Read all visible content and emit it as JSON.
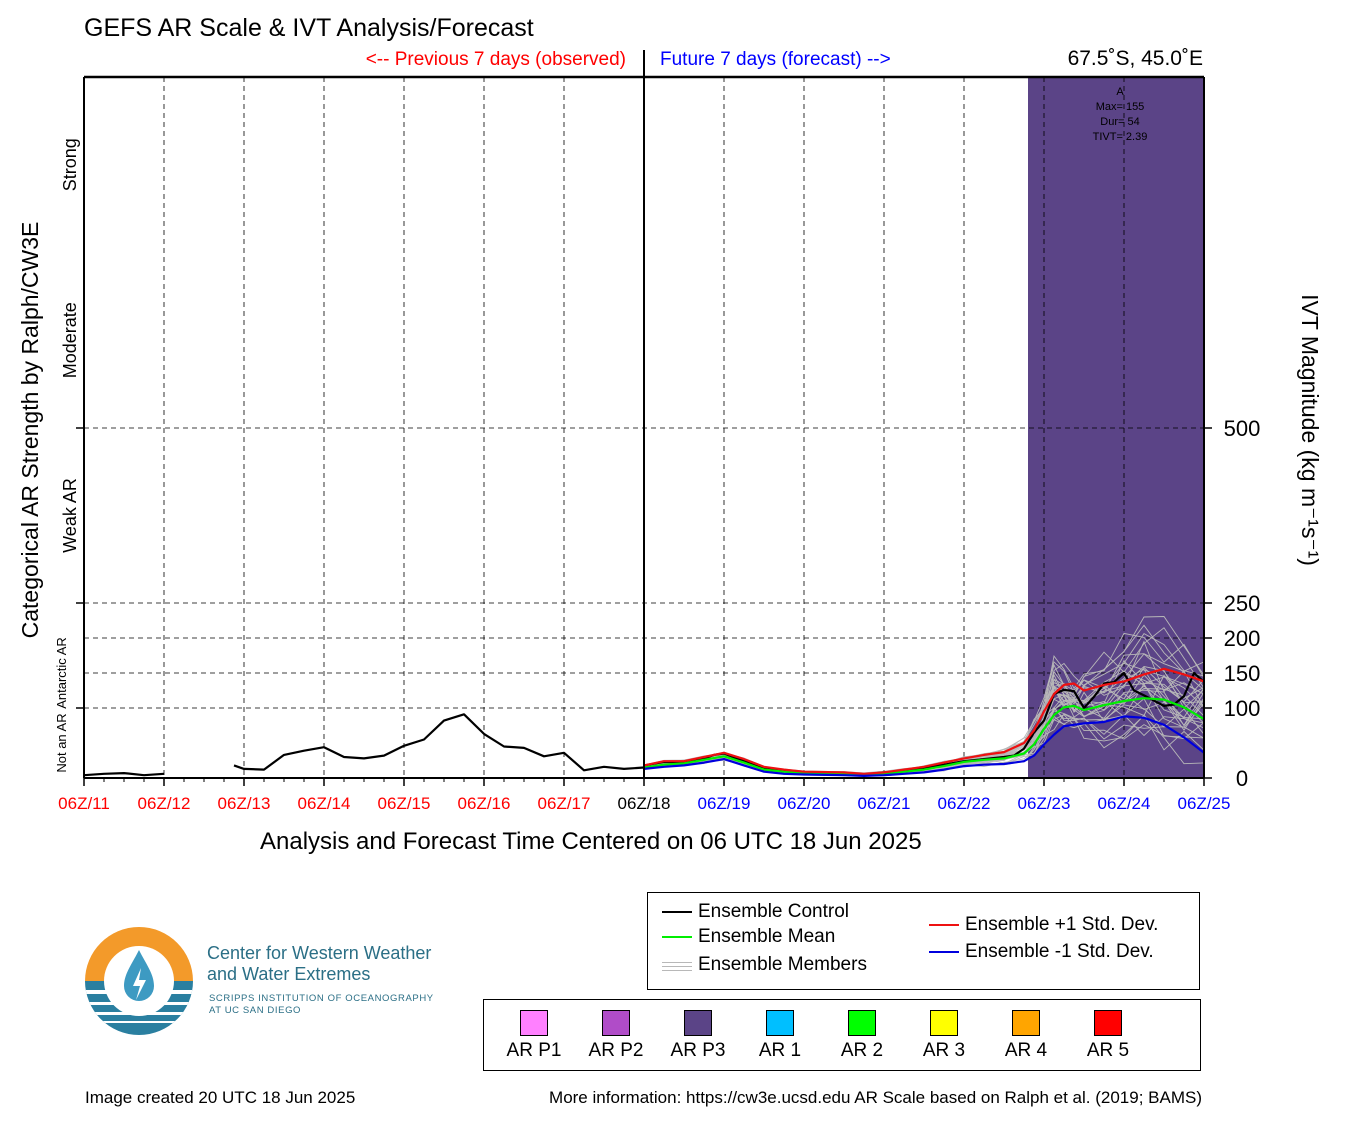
{
  "header": {
    "title": "GEFS AR Scale & IVT Analysis/Forecast",
    "previous_label": "<-- Previous 7 days (observed)",
    "future_label": "Future 7 days (forecast) -->",
    "location": "67.5˚S, 45.0˚E"
  },
  "colors": {
    "observed": "#ff0000",
    "forecast": "#0000ff",
    "control": "#000000",
    "mean": "#00ee00",
    "plus_std": "#ee1111",
    "minus_std": "#0000dd",
    "members": "#b8b8b8",
    "ar_p3": "#5b4487"
  },
  "chart_data": {
    "type": "line",
    "xlabel": "Analysis and Forecast Time Centered on 06 UTC 18 Jun 2025",
    "ylabel_right": "IVT Magnitude (kg m⁻¹s⁻¹)",
    "ylabel_left": "Categorical AR Strength by Ralph/CW3E",
    "xlim": [
      0,
      14
    ],
    "ylim": [
      0,
      1000
    ],
    "x_ticks": [
      {
        "x": 0,
        "label": "06Z/11",
        "color": "#ff0000"
      },
      {
        "x": 1,
        "label": "06Z/12",
        "color": "#ff0000"
      },
      {
        "x": 2,
        "label": "06Z/13",
        "color": "#ff0000"
      },
      {
        "x": 3,
        "label": "06Z/14",
        "color": "#ff0000"
      },
      {
        "x": 4,
        "label": "06Z/15",
        "color": "#ff0000"
      },
      {
        "x": 5,
        "label": "06Z/16",
        "color": "#ff0000"
      },
      {
        "x": 6,
        "label": "06Z/17",
        "color": "#ff0000"
      },
      {
        "x": 7,
        "label": "06Z/18",
        "color": "#000000"
      },
      {
        "x": 8,
        "label": "06Z/19",
        "color": "#0000ff"
      },
      {
        "x": 9,
        "label": "06Z/20",
        "color": "#0000ff"
      },
      {
        "x": 10,
        "label": "06Z/21",
        "color": "#0000ff"
      },
      {
        "x": 11,
        "label": "06Z/22",
        "color": "#0000ff"
      },
      {
        "x": 12,
        "label": "06Z/23",
        "color": "#0000ff"
      },
      {
        "x": 13,
        "label": "06Z/24",
        "color": "#0000ff"
      },
      {
        "x": 14,
        "label": "06Z/25",
        "color": "#0000ff"
      }
    ],
    "y_ticks": [
      {
        "y": 0,
        "label": "0"
      },
      {
        "y": 100,
        "label": "100"
      },
      {
        "y": 150,
        "label": "150"
      },
      {
        "y": 200,
        "label": "200"
      },
      {
        "y": 250,
        "label": "250"
      },
      {
        "y": 500,
        "label": "500"
      }
    ],
    "categories": [
      {
        "label": "Not an AR",
        "y_center": 50
      },
      {
        "label": "Antarctic AR",
        "y_center": 150
      },
      {
        "label": "Weak AR",
        "y_center": 375
      },
      {
        "label": "Moderate",
        "y_center": 625
      },
      {
        "label": "Strong",
        "y_center": 875
      }
    ],
    "grid": true,
    "analysis_split_x": 7,
    "ar_event": {
      "category": "AR P3",
      "x_start": 11.8,
      "x_end": 14,
      "annotation": [
        "A",
        "Max= 155",
        "Dur= 54",
        "TIVT= 2.39"
      ]
    },
    "series": [
      {
        "name": "Ensemble Control",
        "color": "#000000",
        "segments": [
          [
            [
              0,
              4
            ],
            [
              0.25,
              6
            ],
            [
              0.5,
              7
            ],
            [
              0.75,
              4
            ],
            [
              1,
              6
            ]
          ],
          [
            [
              1.875,
              18
            ],
            [
              2,
              13
            ],
            [
              2.25,
              12
            ],
            [
              2.5,
              33
            ],
            [
              2.75,
              39
            ],
            [
              3,
              44
            ],
            [
              3.25,
              30
            ],
            [
              3.5,
              28
            ],
            [
              3.75,
              32
            ],
            [
              4,
              46
            ],
            [
              4.25,
              55
            ],
            [
              4.5,
              82
            ],
            [
              4.75,
              91
            ],
            [
              5,
              63
            ],
            [
              5.25,
              45
            ],
            [
              5.5,
              43
            ],
            [
              5.75,
              31
            ],
            [
              6,
              36
            ],
            [
              6.25,
              11
            ],
            [
              6.5,
              16
            ],
            [
              6.75,
              13
            ],
            [
              7,
              15
            ]
          ]
        ]
      },
      {
        "name": "Ensemble Control",
        "color": "#000000",
        "segments": [
          [
            [
              7,
              18
            ],
            [
              7.25,
              23
            ],
            [
              7.5,
              22
            ],
            [
              7.75,
              28
            ],
            [
              7.875,
              33
            ],
            [
              8,
              35
            ],
            [
              8.25,
              24
            ],
            [
              8.5,
              13
            ],
            [
              8.75,
              10
            ],
            [
              9,
              8
            ],
            [
              9.5,
              7
            ],
            [
              9.75,
              5
            ],
            [
              10,
              8
            ],
            [
              10.25,
              10
            ],
            [
              10.5,
              14
            ],
            [
              10.75,
              19
            ],
            [
              11,
              24
            ],
            [
              11.25,
              27
            ],
            [
              11.5,
              30
            ],
            [
              11.625,
              32
            ],
            [
              11.75,
              42
            ],
            [
              11.875,
              65
            ],
            [
              12,
              82
            ],
            [
              12.125,
              120
            ],
            [
              12.25,
              126
            ],
            [
              12.375,
              124
            ],
            [
              12.5,
              100
            ],
            [
              12.625,
              116
            ],
            [
              12.75,
              135
            ],
            [
              12.875,
              137
            ],
            [
              13,
              150
            ],
            [
              13.125,
              125
            ],
            [
              13.25,
              118
            ],
            [
              13.5,
              103
            ],
            [
              13.625,
              105
            ],
            [
              13.75,
              117
            ],
            [
              13.875,
              150
            ],
            [
              14,
              137
            ]
          ]
        ]
      },
      {
        "name": "Ensemble Mean",
        "color": "#00ee00",
        "segments": [
          [
            [
              7,
              15
            ],
            [
              7.25,
              19
            ],
            [
              7.5,
              21
            ],
            [
              7.75,
              26
            ],
            [
              8,
              31
            ],
            [
              8.25,
              22
            ],
            [
              8.5,
              12
            ],
            [
              8.75,
              9
            ],
            [
              9,
              7
            ],
            [
              9.5,
              6
            ],
            [
              9.75,
              5
            ],
            [
              10,
              6
            ],
            [
              10.25,
              9
            ],
            [
              10.5,
              12
            ],
            [
              10.75,
              17
            ],
            [
              11,
              23
            ],
            [
              11.25,
              26
            ],
            [
              11.5,
              28
            ],
            [
              11.75,
              35
            ],
            [
              11.875,
              48
            ],
            [
              12,
              70
            ],
            [
              12.125,
              90
            ],
            [
              12.25,
              101
            ],
            [
              12.375,
              103
            ],
            [
              12.5,
              97
            ],
            [
              12.75,
              104
            ],
            [
              13,
              110
            ],
            [
              13.25,
              114
            ],
            [
              13.5,
              112
            ],
            [
              13.75,
              101
            ],
            [
              14,
              84
            ]
          ]
        ]
      },
      {
        "name": "Ensemble +1 Std. Dev.",
        "color": "#ee1111",
        "segments": [
          [
            [
              7,
              18
            ],
            [
              7.25,
              24
            ],
            [
              7.5,
              24
            ],
            [
              7.75,
              30
            ],
            [
              8,
              36
            ],
            [
              8.25,
              27
            ],
            [
              8.5,
              16
            ],
            [
              8.75,
              12
            ],
            [
              9,
              9
            ],
            [
              9.5,
              8
            ],
            [
              9.75,
              6
            ],
            [
              10,
              8
            ],
            [
              10.25,
              12
            ],
            [
              10.5,
              16
            ],
            [
              10.75,
              22
            ],
            [
              11,
              28
            ],
            [
              11.25,
              33
            ],
            [
              11.5,
              37
            ],
            [
              11.75,
              50
            ],
            [
              11.875,
              68
            ],
            [
              12,
              95
            ],
            [
              12.125,
              120
            ],
            [
              12.25,
              133
            ],
            [
              12.375,
              135
            ],
            [
              12.5,
              125
            ],
            [
              12.75,
              133
            ],
            [
              13,
              138
            ],
            [
              13.25,
              148
            ],
            [
              13.5,
              156
            ],
            [
              13.75,
              148
            ],
            [
              14,
              138
            ]
          ]
        ]
      },
      {
        "name": "Ensemble -1 Std. Dev.",
        "color": "#0000dd",
        "segments": [
          [
            [
              7,
              13
            ],
            [
              7.25,
              16
            ],
            [
              7.5,
              18
            ],
            [
              7.75,
              22
            ],
            [
              8,
              27
            ],
            [
              8.25,
              18
            ],
            [
              8.5,
              9
            ],
            [
              8.75,
              6
            ],
            [
              9,
              5
            ],
            [
              9.5,
              4
            ],
            [
              9.75,
              3
            ],
            [
              10,
              4
            ],
            [
              10.25,
              6
            ],
            [
              10.5,
              8
            ],
            [
              10.75,
              12
            ],
            [
              11,
              17
            ],
            [
              11.25,
              19
            ],
            [
              11.5,
              20
            ],
            [
              11.75,
              24
            ],
            [
              11.875,
              32
            ],
            [
              12,
              48
            ],
            [
              12.125,
              62
            ],
            [
              12.25,
              74
            ],
            [
              12.375,
              76
            ],
            [
              12.5,
              78
            ],
            [
              12.75,
              80
            ],
            [
              13,
              88
            ],
            [
              13.25,
              86
            ],
            [
              13.5,
              76
            ],
            [
              13.75,
              58
            ],
            [
              14,
              36
            ]
          ]
        ]
      }
    ],
    "members_band": {
      "name": "Ensemble Members",
      "color": "#b8b8b8",
      "count": 30,
      "x": [
        7,
        7.25,
        7.5,
        7.75,
        8,
        8.25,
        8.5,
        8.75,
        9,
        9.5,
        9.75,
        10,
        10.25,
        10.5,
        10.75,
        11,
        11.25,
        11.5,
        11.75,
        11.875,
        12,
        12.125,
        12.25,
        12.375,
        12.5,
        12.75,
        13,
        13.25,
        13.5,
        13.75,
        14
      ],
      "low": [
        12,
        15,
        17,
        20,
        24,
        16,
        8,
        5,
        4,
        3,
        2,
        3,
        5,
        7,
        10,
        14,
        16,
        17,
        20,
        25,
        40,
        55,
        60,
        60,
        45,
        30,
        25,
        20,
        10,
        8,
        5
      ],
      "high": [
        20,
        26,
        27,
        33,
        40,
        30,
        18,
        14,
        11,
        10,
        8,
        10,
        14,
        19,
        26,
        33,
        38,
        44,
        62,
        90,
        125,
        185,
        170,
        150,
        175,
        195,
        230,
        250,
        240,
        210,
        200
      ]
    }
  },
  "legend": {
    "control": "Ensemble Control",
    "mean": "Ensemble Mean",
    "members": "Ensemble Members",
    "plus": "Ensemble +1 Std. Dev.",
    "minus": "Ensemble -1 Std. Dev."
  },
  "ar_scale": [
    {
      "label": "AR P1",
      "color": "#ff80ff"
    },
    {
      "label": "AR P2",
      "color": "#b04cc8"
    },
    {
      "label": "AR P3",
      "color": "#5b4487"
    },
    {
      "label": "AR 1",
      "color": "#00bfff"
    },
    {
      "label": "AR 2",
      "color": "#00ff00"
    },
    {
      "label": "AR 3",
      "color": "#ffff00"
    },
    {
      "label": "AR 4",
      "color": "#ffa500"
    },
    {
      "label": "AR 5",
      "color": "#ff0000"
    }
  ],
  "logo": {
    "line1": "Center for Western Weather",
    "line2": "and Water Extremes",
    "line3": "SCRIPPS INSTITUTION OF OCEANOGRAPHY",
    "line4": "AT UC SAN DIEGO"
  },
  "footer": {
    "created": "Image created 20 UTC 18 Jun 2025",
    "more_info": "More information: https://cw3e.ucsd.edu AR Scale based on Ralph et al. (2019; BAMS)"
  }
}
